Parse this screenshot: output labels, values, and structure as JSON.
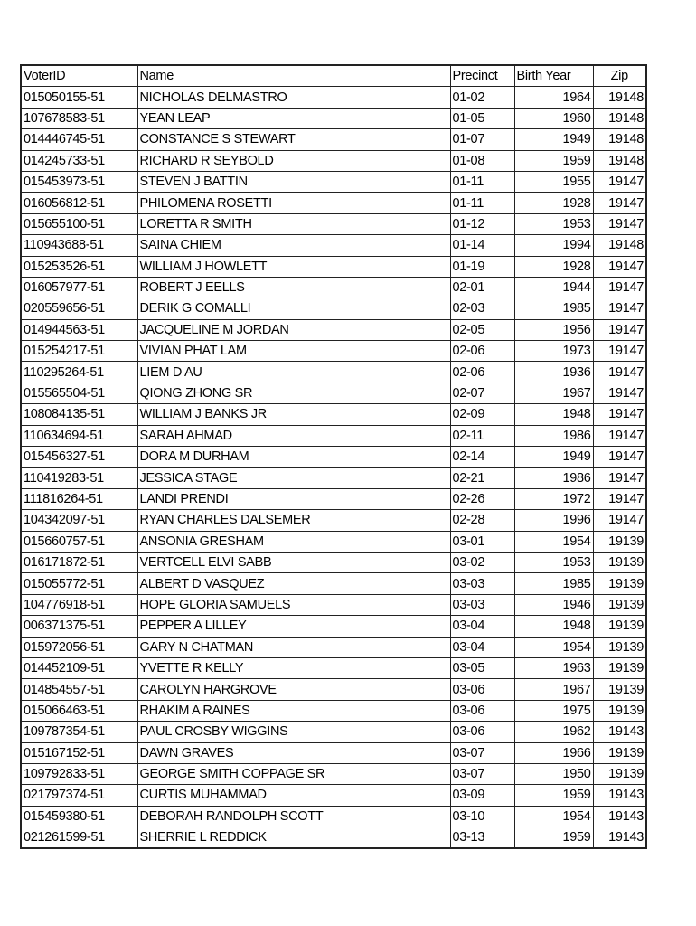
{
  "table": {
    "headers": [
      "VoterID",
      "Name",
      "Precinct",
      "Birth Year",
      "Zip"
    ],
    "rows": [
      [
        "015050155-51",
        "NICHOLAS DELMASTRO",
        "01-02",
        "1964",
        "19148"
      ],
      [
        "107678583-51",
        "YEAN LEAP",
        "01-05",
        "1960",
        "19148"
      ],
      [
        "014446745-51",
        "CONSTANCE S STEWART",
        "01-07",
        "1949",
        "19148"
      ],
      [
        "014245733-51",
        "RICHARD R SEYBOLD",
        "01-08",
        "1959",
        "19148"
      ],
      [
        "015453973-51",
        "STEVEN J BATTIN",
        "01-11",
        "1955",
        "19147"
      ],
      [
        "016056812-51",
        "PHILOMENA ROSETTI",
        "01-11",
        "1928",
        "19147"
      ],
      [
        "015655100-51",
        "LORETTA R SMITH",
        "01-12",
        "1953",
        "19147"
      ],
      [
        "110943688-51",
        "SAINA CHIEM",
        "01-14",
        "1994",
        "19148"
      ],
      [
        "015253526-51",
        "WILLIAM J HOWLETT",
        "01-19",
        "1928",
        "19147"
      ],
      [
        "016057977-51",
        "ROBERT J EELLS",
        "02-01",
        "1944",
        "19147"
      ],
      [
        "020559656-51",
        "DERIK G COMALLI",
        "02-03",
        "1985",
        "19147"
      ],
      [
        "014944563-51",
        "JACQUELINE M JORDAN",
        "02-05",
        "1956",
        "19147"
      ],
      [
        "015254217-51",
        "VIVIAN PHAT LAM",
        "02-06",
        "1973",
        "19147"
      ],
      [
        "110295264-51",
        "LIEM D AU",
        "02-06",
        "1936",
        "19147"
      ],
      [
        "015565504-51",
        "QIONG ZHONG SR",
        "02-07",
        "1967",
        "19147"
      ],
      [
        "108084135-51",
        "WILLIAM J BANKS JR",
        "02-09",
        "1948",
        "19147"
      ],
      [
        "110634694-51",
        "SARAH AHMAD",
        "02-11",
        "1986",
        "19147"
      ],
      [
        "015456327-51",
        "DORA M DURHAM",
        "02-14",
        "1949",
        "19147"
      ],
      [
        "110419283-51",
        "JESSICA STAGE",
        "02-21",
        "1986",
        "19147"
      ],
      [
        "111816264-51",
        "LANDI PRENDI",
        "02-26",
        "1972",
        "19147"
      ],
      [
        "104342097-51",
        "RYAN CHARLES DALSEMER",
        "02-28",
        "1996",
        "19147"
      ],
      [
        "015660757-51",
        "ANSONIA GRESHAM",
        "03-01",
        "1954",
        "19139"
      ],
      [
        "016171872-51",
        "VERTCELL ELVI SABB",
        "03-02",
        "1953",
        "19139"
      ],
      [
        "015055772-51",
        "ALBERT D VASQUEZ",
        "03-03",
        "1985",
        "19139"
      ],
      [
        "104776918-51",
        "HOPE GLORIA SAMUELS",
        "03-03",
        "1946",
        "19139"
      ],
      [
        "006371375-51",
        "PEPPER A LILLEY",
        "03-04",
        "1948",
        "19139"
      ],
      [
        "015972056-51",
        "GARY N CHATMAN",
        "03-04",
        "1954",
        "19139"
      ],
      [
        "014452109-51",
        "YVETTE R KELLY",
        "03-05",
        "1963",
        "19139"
      ],
      [
        "014854557-51",
        "CAROLYN HARGROVE",
        "03-06",
        "1967",
        "19139"
      ],
      [
        "015066463-51",
        "RHAKIM A RAINES",
        "03-06",
        "1975",
        "19139"
      ],
      [
        "109787354-51",
        "PAUL CROSBY WIGGINS",
        "03-06",
        "1962",
        "19143"
      ],
      [
        "015167152-51",
        "DAWN GRAVES",
        "03-07",
        "1966",
        "19139"
      ],
      [
        "109792833-51",
        "GEORGE SMITH COPPAGE SR",
        "03-07",
        "1950",
        "19139"
      ],
      [
        "021797374-51",
        "CURTIS MUHAMMAD",
        "03-09",
        "1959",
        "19143"
      ],
      [
        "015459380-51",
        "DEBORAH RANDOLPH SCOTT",
        "03-10",
        "1954",
        "19143"
      ],
      [
        "021261599-51",
        "SHERRIE L REDDICK",
        "03-13",
        "1959",
        "19143"
      ]
    ]
  }
}
